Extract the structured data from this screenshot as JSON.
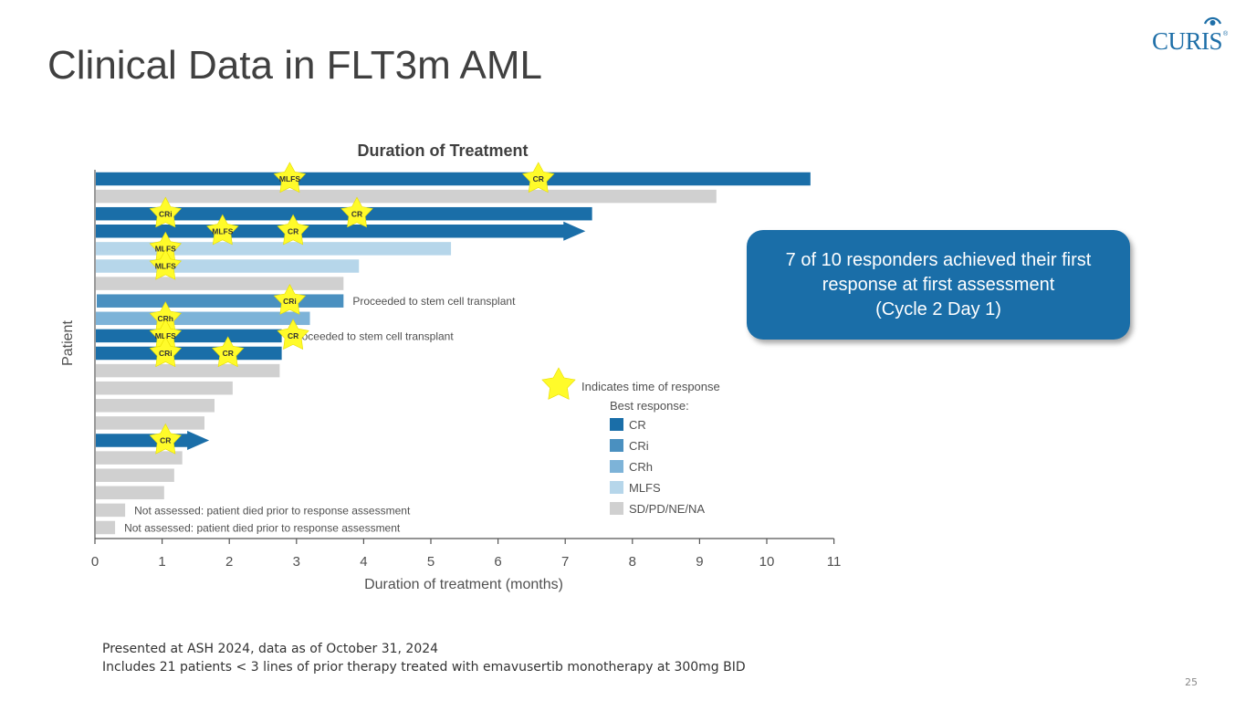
{
  "slide": {
    "title": "Clinical Data in FLT3m AML",
    "logo_text": "CURIS",
    "logo_reg": "®",
    "page_number": "25"
  },
  "callout": {
    "lines": [
      "7 of 10 responders achieved their first",
      "response at first assessment",
      "(Cycle 2 Day 1)"
    ]
  },
  "footnotes": {
    "line1": "Presented at ASH 2024, data as of October 31, 2024",
    "line2": "Includes 21 patients < 3 lines of prior therapy treated with emavusertib monotherapy at 300mg BID"
  },
  "colors": {
    "CR": "#1a6ea8",
    "CRi": "#4a90c0",
    "CRh": "#7db3d8",
    "MLFS": "#b6d6ea",
    "SD/PD/NE/NA": "#d0d0d0",
    "star": "#fffb2a",
    "callout": "#1a6ea8"
  },
  "chart_data": {
    "type": "swimmer",
    "title": "Duration of Treatment",
    "xlabel": "Duration of treatment (months)",
    "ylabel": "Patient",
    "xlim": [
      0,
      11
    ],
    "xticks": [
      0,
      1,
      2,
      3,
      4,
      5,
      6,
      7,
      8,
      9,
      10,
      11
    ],
    "legend": {
      "star_label": "Indicates time of response",
      "heading": "Best response:",
      "items": [
        "CR",
        "CRi",
        "CRh",
        "MLFS",
        "SD/PD/NE/NA"
      ]
    },
    "patients": [
      {
        "duration": 10.65,
        "best": "CR",
        "ongoing": false,
        "responses": [
          {
            "t": 2.9,
            "label": "MLFS"
          },
          {
            "t": 6.6,
            "label": "CR"
          }
        ]
      },
      {
        "duration": 9.25,
        "best": "SD/PD/NE/NA",
        "ongoing": false,
        "responses": []
      },
      {
        "duration": 7.4,
        "best": "CR",
        "ongoing": false,
        "responses": [
          {
            "t": 1.05,
            "label": "CRi"
          },
          {
            "t": 3.9,
            "label": "CR"
          }
        ]
      },
      {
        "duration": 7.3,
        "best": "CR",
        "ongoing": true,
        "responses": [
          {
            "t": 1.9,
            "label": "MLFS"
          },
          {
            "t": 2.95,
            "label": "CR"
          }
        ]
      },
      {
        "duration": 5.3,
        "best": "MLFS",
        "ongoing": false,
        "responses": [
          {
            "t": 1.05,
            "label": "MLFS"
          }
        ]
      },
      {
        "duration": 3.93,
        "best": "MLFS",
        "ongoing": false,
        "responses": [
          {
            "t": 1.05,
            "label": "MLFS"
          }
        ]
      },
      {
        "duration": 3.7,
        "best": "SD/PD/NE/NA",
        "ongoing": false,
        "responses": []
      },
      {
        "duration": 3.7,
        "best": "CRi",
        "ongoing": false,
        "responses": [
          {
            "t": 2.9,
            "label": "CRi"
          }
        ],
        "note": "Proceeded to stem cell transplant"
      },
      {
        "duration": 3.2,
        "best": "CRh",
        "ongoing": false,
        "responses": [
          {
            "t": 1.05,
            "label": "CRh"
          }
        ]
      },
      {
        "duration": 2.78,
        "best": "CR",
        "ongoing": false,
        "responses": [
          {
            "t": 1.05,
            "label": "MLFS"
          },
          {
            "t": 2.95,
            "label": "CR"
          }
        ],
        "note": "Proceeded to stem cell transplant"
      },
      {
        "duration": 2.78,
        "best": "CR",
        "ongoing": false,
        "responses": [
          {
            "t": 1.05,
            "label": "CRi"
          },
          {
            "t": 1.98,
            "label": "CR"
          }
        ]
      },
      {
        "duration": 2.75,
        "best": "SD/PD/NE/NA",
        "ongoing": false,
        "responses": []
      },
      {
        "duration": 2.05,
        "best": "SD/PD/NE/NA",
        "ongoing": false,
        "responses": []
      },
      {
        "duration": 1.78,
        "best": "SD/PD/NE/NA",
        "ongoing": false,
        "responses": []
      },
      {
        "duration": 1.63,
        "best": "SD/PD/NE/NA",
        "ongoing": false,
        "responses": []
      },
      {
        "duration": 1.7,
        "best": "CR",
        "ongoing": true,
        "responses": [
          {
            "t": 1.05,
            "label": "CR"
          }
        ]
      },
      {
        "duration": 1.3,
        "best": "SD/PD/NE/NA",
        "ongoing": false,
        "responses": []
      },
      {
        "duration": 1.18,
        "best": "SD/PD/NE/NA",
        "ongoing": false,
        "responses": []
      },
      {
        "duration": 1.03,
        "best": "SD/PD/NE/NA",
        "ongoing": false,
        "responses": []
      },
      {
        "duration": 0.45,
        "best": "SD/PD/NE/NA",
        "ongoing": false,
        "responses": [],
        "note": "Not assessed: patient died prior to response assessment"
      },
      {
        "duration": 0.3,
        "best": "SD/PD/NE/NA",
        "ongoing": false,
        "responses": [],
        "note": "Not assessed: patient died prior to response assessment"
      }
    ]
  }
}
